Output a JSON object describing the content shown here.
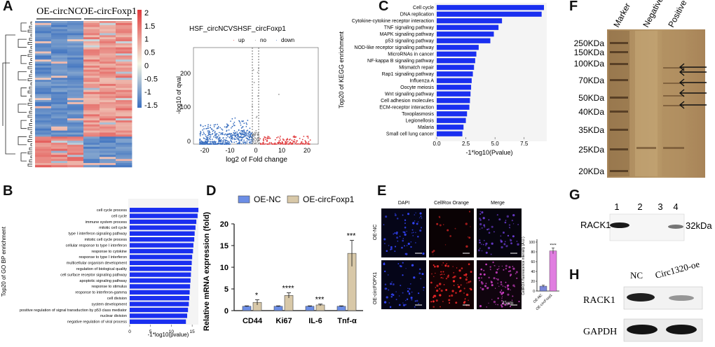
{
  "panels": {
    "A": "A",
    "B": "B",
    "C": "C",
    "D": "D",
    "E": "E",
    "F": "F",
    "G": "G",
    "H": "H"
  },
  "heatmap": {
    "group1": "OE-circNC",
    "group2": "OE-circFoxp1",
    "colorbar_ticks": [
      "2",
      "1.5",
      "1",
      "0.5",
      "0",
      "-0.5",
      "-1",
      "-1.5"
    ],
    "colors": {
      "low": "#3a6fbf",
      "mid": "#f4f6e4",
      "high": "#e0383a"
    }
  },
  "volcano": {
    "title": "HSF_circNCVSHSF_circFoxp1",
    "legend": [
      "up",
      "no",
      "down"
    ],
    "xlabel": "log2 of Fold change",
    "ylabel": "-log10 of qval",
    "xticks": [
      "-20",
      "-10",
      "0",
      "10",
      "20"
    ],
    "yticks": [
      "0",
      "100",
      "200"
    ],
    "colors": {
      "up": "#e0383a",
      "no": "#999999",
      "down": "#3a6fbf"
    }
  },
  "kegg": {
    "ylabel": "Top20 of KEGG enrichment",
    "xlabel": "-1*log10(Pvalue)",
    "xticks": [
      "0.0",
      "2.5",
      "5.0",
      "7.5"
    ],
    "xlim": [
      0,
      9.5
    ],
    "bar_color": "#1a2ff0"
  },
  "gobp": {
    "ylabel": "Top20 of GO BP enrichment",
    "xlabel": "-1*log10(pvalue)",
    "xticks": [
      "0",
      "5",
      "10",
      "15"
    ],
    "xlim": [
      0,
      17.5
    ],
    "bar_color": "#1a2ff0"
  },
  "qpcr": {
    "legend": [
      "OE-NC",
      "OE-circFoxp1"
    ],
    "ylabel": "Relative mRNA expression (fold)",
    "yticks": [
      "0",
      "5",
      "10",
      "15",
      "20"
    ],
    "ylim": [
      0,
      20
    ],
    "colors": {
      "nc": "#6c8ee6",
      "oe": "#d8c8a8"
    }
  },
  "cellrox": {
    "col_labels": [
      "DAPI",
      "CellRox Orange",
      "Merge"
    ],
    "row_labels": [
      "OE-NC",
      "OE-circFOPX1"
    ],
    "scale_bar": "25μm",
    "bar_ylabel": "CellROX fluorescence intensity (A.U.)",
    "bar_yticks": [
      "0",
      "20",
      "40",
      "60",
      "80",
      "100"
    ],
    "bar_xticks": [
      "OE-NC",
      "OE-circFoxp1"
    ],
    "significance": "****",
    "ylim": [
      0,
      100
    ],
    "colors": {
      "nc": "#7a86d8",
      "oe": "#e07ee0"
    }
  },
  "silver_stain": {
    "lane_labels": [
      "Marker",
      "Negative",
      "Positive"
    ],
    "markers": [
      "250KDa",
      "150KDa",
      "100KDa",
      "70KDa",
      "50KDa",
      "40KDa",
      "35KDa",
      "25KDa",
      "20KDa"
    ]
  },
  "western_g": {
    "lanes": [
      "1",
      "2",
      "3",
      "4"
    ],
    "protein": "RACK1",
    "size": "32kDa"
  },
  "western_h": {
    "lanes": [
      "NC",
      "Circ1320-oe"
    ],
    "proteins": [
      "RACK1",
      "GAPDH"
    ]
  },
  "chart_data": [
    {
      "type": "bar",
      "title": "",
      "orientation": "horizontal",
      "ylabel": "Top20 of KEGG enrichment",
      "xlabel": "-1*log10(Pvalue)",
      "xlim": [
        0,
        9.5
      ],
      "categories": [
        "Cell cycle",
        "DNA replication",
        "Cytokine-cytokine receptor interaction",
        "TNF signaling pathway",
        "MAPK signaling pathway",
        "p53 signaling pathway",
        "NOD-like receptor signaling pathway",
        "MicroRNAs in cancer",
        "NF-kappa B signaling pathway",
        "Mismatch repair",
        "Rap1 signaling pathway",
        "Influenza A",
        "Oocyte meiosis",
        "Wnt signaling pathway",
        "Cell adhesion molecules",
        "ECM-receptor interaction",
        "Toxoplasmosis",
        "Legionellosis",
        "Malaria",
        "Small cell lung cancer"
      ],
      "values": [
        9.2,
        9.0,
        5.6,
        5.3,
        4.9,
        4.6,
        3.6,
        3.4,
        3.3,
        3.2,
        3.1,
        3.0,
        2.95,
        2.9,
        2.85,
        2.8,
        2.6,
        2.5,
        2.3,
        2.2
      ]
    },
    {
      "type": "bar",
      "title": "",
      "orientation": "horizontal",
      "ylabel": "Top20 of GO BP enrichment",
      "xlabel": "-1*log10(pvalue)",
      "xlim": [
        0,
        17.5
      ],
      "categories": [
        "cell cycle process",
        "cell cycle",
        "immune system process",
        "mitotic cell cycle",
        "type I interferon signaling pathway",
        "mitotic cell cycle process",
        "cellular response to type I interferon",
        "response to cytokine",
        "response to type I interferon",
        "multicellular organism development",
        "regulation of biological quality",
        "cell surface receptor signaling pathway",
        "apoptotic signaling pathway",
        "response to stimulus",
        "response to interferon-gamma",
        "cell division",
        "system development",
        "positive regulation of signal transduction by p53 class mediator",
        "nuclear division",
        "negative regulation of viral process"
      ],
      "values": [
        16.5,
        16.3,
        16.0,
        15.8,
        15.6,
        15.5,
        15.3,
        15.2,
        15.0,
        14.9,
        14.8,
        14.7,
        14.6,
        14.5,
        14.4,
        14.3,
        14.2,
        14.0,
        13.8,
        13.5
      ]
    },
    {
      "type": "bar",
      "title": "",
      "xlabel": "",
      "ylabel": "Relative mRNA expression (fold)",
      "ylim": [
        0,
        20
      ],
      "categories": [
        "CD44",
        "Ki67",
        "IL-6",
        "Tnf-α"
      ],
      "series": [
        {
          "name": "OE-NC",
          "values": [
            1,
            1,
            1,
            1
          ],
          "errors": [
            0.1,
            0.1,
            0.1,
            0.1
          ]
        },
        {
          "name": "OE-circFoxp1",
          "values": [
            1.9,
            3.5,
            1.3,
            13.2
          ],
          "errors": [
            0.6,
            0.6,
            0.2,
            3.0
          ]
        }
      ],
      "annotations": [
        "*",
        "****",
        "***",
        "***"
      ]
    },
    {
      "type": "bar",
      "title": "",
      "xlabel": "",
      "ylabel": "CellROX fluorescence intensity (A.U.)",
      "ylim": [
        0,
        100
      ],
      "categories": [
        "OE-NC",
        "OE-circFoxp1"
      ],
      "values": [
        10,
        82
      ],
      "errors": [
        2,
        6
      ],
      "annotations": [
        "",
        "****"
      ]
    }
  ]
}
